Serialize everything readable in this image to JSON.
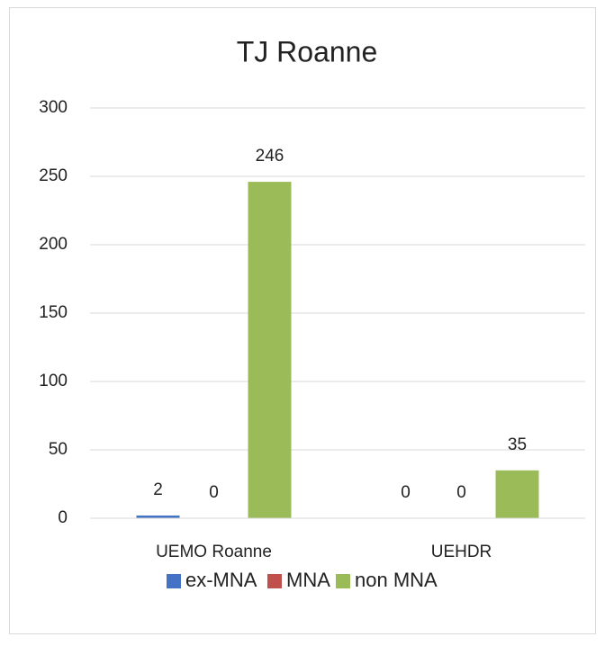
{
  "chart_data": {
    "type": "bar",
    "title": "TJ Roanne",
    "categories": [
      "UEMO Roanne",
      "UEHDR"
    ],
    "series": [
      {
        "name": "ex-MNA",
        "color": "#4472c4",
        "values": [
          2,
          0
        ]
      },
      {
        "name": "MNA",
        "color": "#c0504d",
        "values": [
          0,
          0
        ]
      },
      {
        "name": "non MNA",
        "color": "#9bbb59",
        "values": [
          246,
          35
        ]
      }
    ],
    "ylim": [
      0,
      300
    ],
    "yticks": [
      0,
      50,
      100,
      150,
      200,
      250,
      300
    ],
    "grid": true,
    "legend": "bottom"
  }
}
